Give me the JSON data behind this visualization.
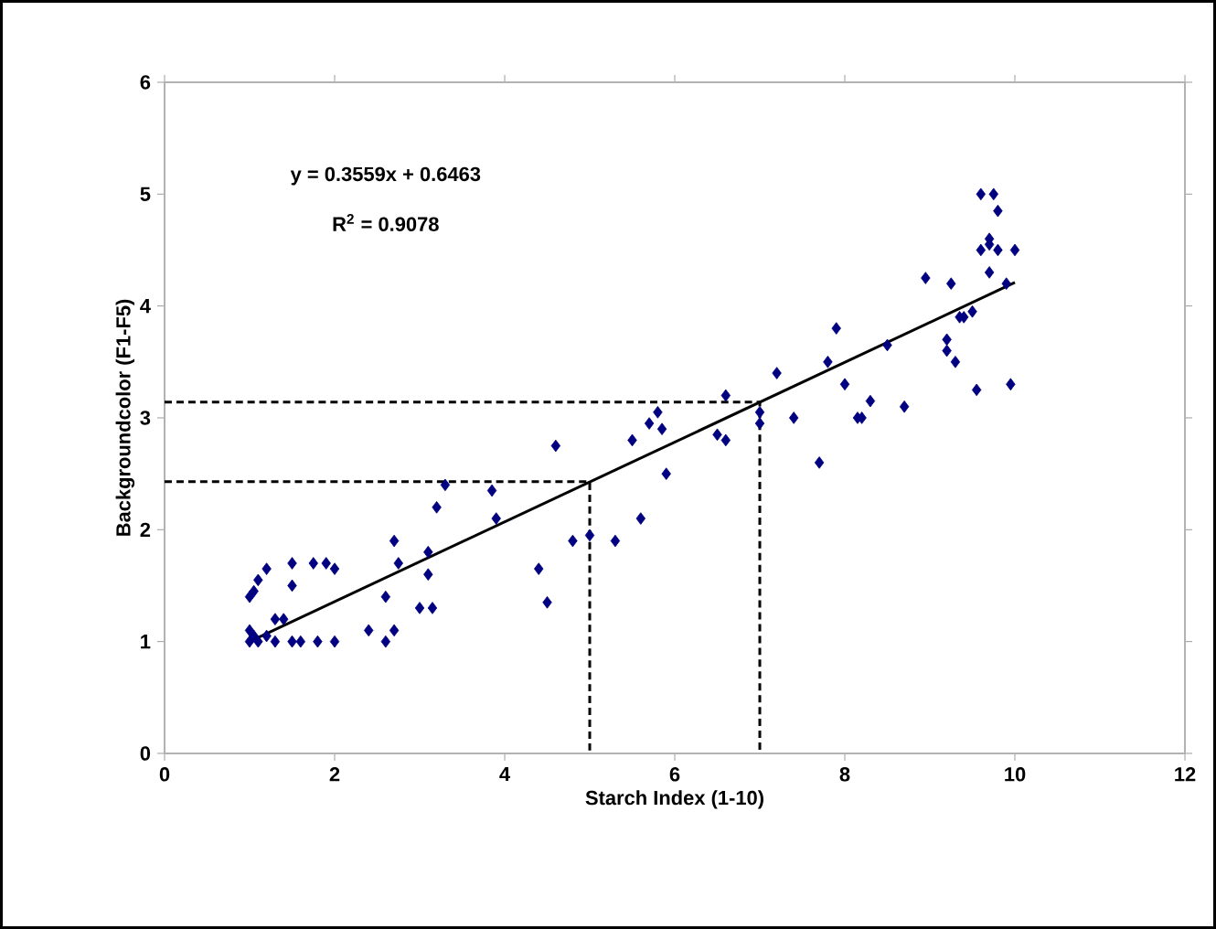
{
  "chart_data": {
    "type": "scatter",
    "xlabel": "Starch Index (1-10)",
    "ylabel": "Backgroundcolor (F1-F5)",
    "xlim": [
      0,
      12
    ],
    "ylim": [
      0,
      6
    ],
    "xticks": [
      0,
      2,
      4,
      6,
      8,
      10,
      12
    ],
    "yticks": [
      0,
      1,
      2,
      3,
      4,
      5,
      6
    ],
    "grid": false,
    "annotations": [
      "y = 0.3559x + 0.6463",
      "R$^{2}$ = 0.9078"
    ],
    "series": [
      {
        "marker": "diamond",
        "color": "#000080",
        "x": [
          1.0,
          1.05,
          1.1,
          1.0,
          1.2,
          1.3,
          1.5,
          1.6,
          1.8,
          2.0,
          1.3,
          1.4,
          1.5,
          1.0,
          1.05,
          1.1,
          1.2,
          1.5,
          1.75,
          1.9,
          2.0,
          2.4,
          2.6,
          2.7,
          2.6,
          2.75,
          2.7,
          3.0,
          3.15,
          3.1,
          3.1,
          3.2,
          3.3,
          3.85,
          3.9,
          4.4,
          4.5,
          4.6,
          4.8,
          5.0,
          5.3,
          5.5,
          5.6,
          5.7,
          5.8,
          5.85,
          5.9,
          6.5,
          6.6,
          6.6,
          7.0,
          7.0,
          7.2,
          7.4,
          7.7,
          7.8,
          7.9,
          8.0,
          8.15,
          8.2,
          8.3,
          8.5,
          8.7,
          8.95,
          9.2,
          9.3,
          9.25,
          9.35,
          9.5,
          9.55,
          9.6,
          9.75,
          9.8,
          9.6,
          9.7,
          9.7,
          9.8,
          9.9,
          10.0,
          9.7,
          9.95,
          9.4,
          9.2
        ],
        "values": [
          1.0,
          1.05,
          1.0,
          1.1,
          1.05,
          1.0,
          1.0,
          1.0,
          1.0,
          1.0,
          1.2,
          1.2,
          1.5,
          1.4,
          1.45,
          1.55,
          1.65,
          1.7,
          1.7,
          1.7,
          1.65,
          1.1,
          1.0,
          1.1,
          1.4,
          1.7,
          1.9,
          1.3,
          1.3,
          1.6,
          1.8,
          2.2,
          2.4,
          2.35,
          2.1,
          1.65,
          1.35,
          2.75,
          1.9,
          1.95,
          1.9,
          2.8,
          2.1,
          2.95,
          3.05,
          2.9,
          2.5,
          2.85,
          2.8,
          3.2,
          2.95,
          3.05,
          3.4,
          3.0,
          2.6,
          3.5,
          3.8,
          3.3,
          3.0,
          3.0,
          3.15,
          3.65,
          3.1,
          4.25,
          3.7,
          3.5,
          4.2,
          3.9,
          3.95,
          3.25,
          5.0,
          5.0,
          4.85,
          4.5,
          4.3,
          4.6,
          4.5,
          4.2,
          4.5,
          4.55,
          3.3,
          3.9,
          3.6
        ]
      },
      {
        "type": "line",
        "marker": "none",
        "line_style": "solid",
        "color": "#000000",
        "x": [
          1,
          10
        ],
        "values": [
          1.0,
          4.21
        ]
      },
      {
        "type": "line",
        "marker": "none",
        "line_style": "dashed",
        "color": "#000000",
        "x": [
          0,
          5,
          5
        ],
        "values": [
          2.43,
          2.43,
          0
        ]
      },
      {
        "type": "line",
        "marker": "none",
        "line_style": "dashed",
        "color": "#000000",
        "x": [
          0,
          7,
          7
        ],
        "values": [
          3.14,
          3.14,
          0
        ]
      }
    ]
  }
}
